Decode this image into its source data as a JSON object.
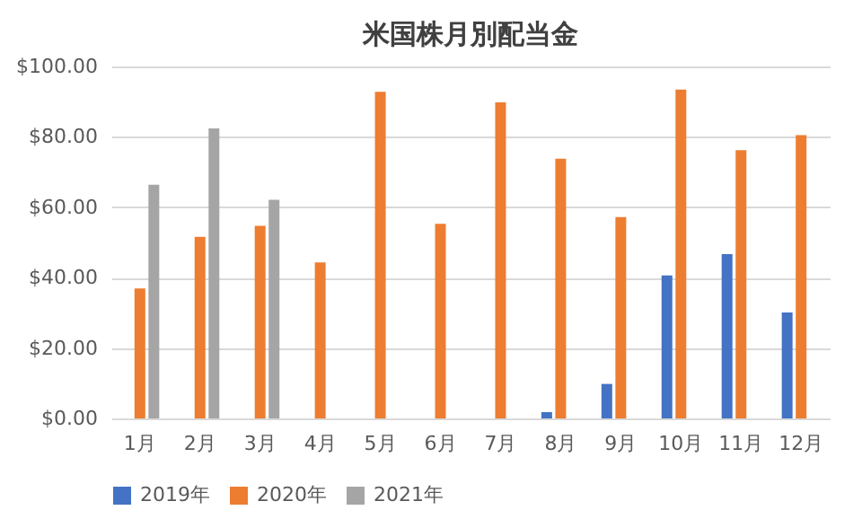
{
  "chart_data": {
    "type": "bar",
    "title": "米国株月別配当金",
    "categories": [
      "1月",
      "2月",
      "3月",
      "4月",
      "5月",
      "6月",
      "7月",
      "8月",
      "9月",
      "10月",
      "11月",
      "12月"
    ],
    "series": [
      {
        "name": "2019年",
        "color": "#4472c4",
        "values": [
          null,
          null,
          null,
          null,
          null,
          null,
          null,
          1.8,
          9.8,
          40.6,
          46.7,
          30.1
        ]
      },
      {
        "name": "2020年",
        "color": "#ed7d31",
        "values": [
          36.9,
          51.6,
          54.7,
          44.3,
          92.8,
          55.3,
          89.8,
          73.8,
          57.2,
          93.4,
          76.2,
          80.5
        ]
      },
      {
        "name": "2021年",
        "color": "#a5a5a5",
        "values": [
          66.4,
          82.4,
          62.1,
          null,
          null,
          null,
          null,
          null,
          null,
          null,
          null,
          null
        ]
      }
    ],
    "ylim": [
      0,
      100
    ],
    "yticks": [
      {
        "value": 0,
        "label": "$0.00"
      },
      {
        "value": 20,
        "label": "$20.00"
      },
      {
        "value": 40,
        "label": "$40.00"
      },
      {
        "value": 60,
        "label": "$60.00"
      },
      {
        "value": 80,
        "label": "$80.00"
      },
      {
        "value": 100,
        "label": "$100.00"
      }
    ],
    "grid": "y",
    "legend": "bottom"
  }
}
